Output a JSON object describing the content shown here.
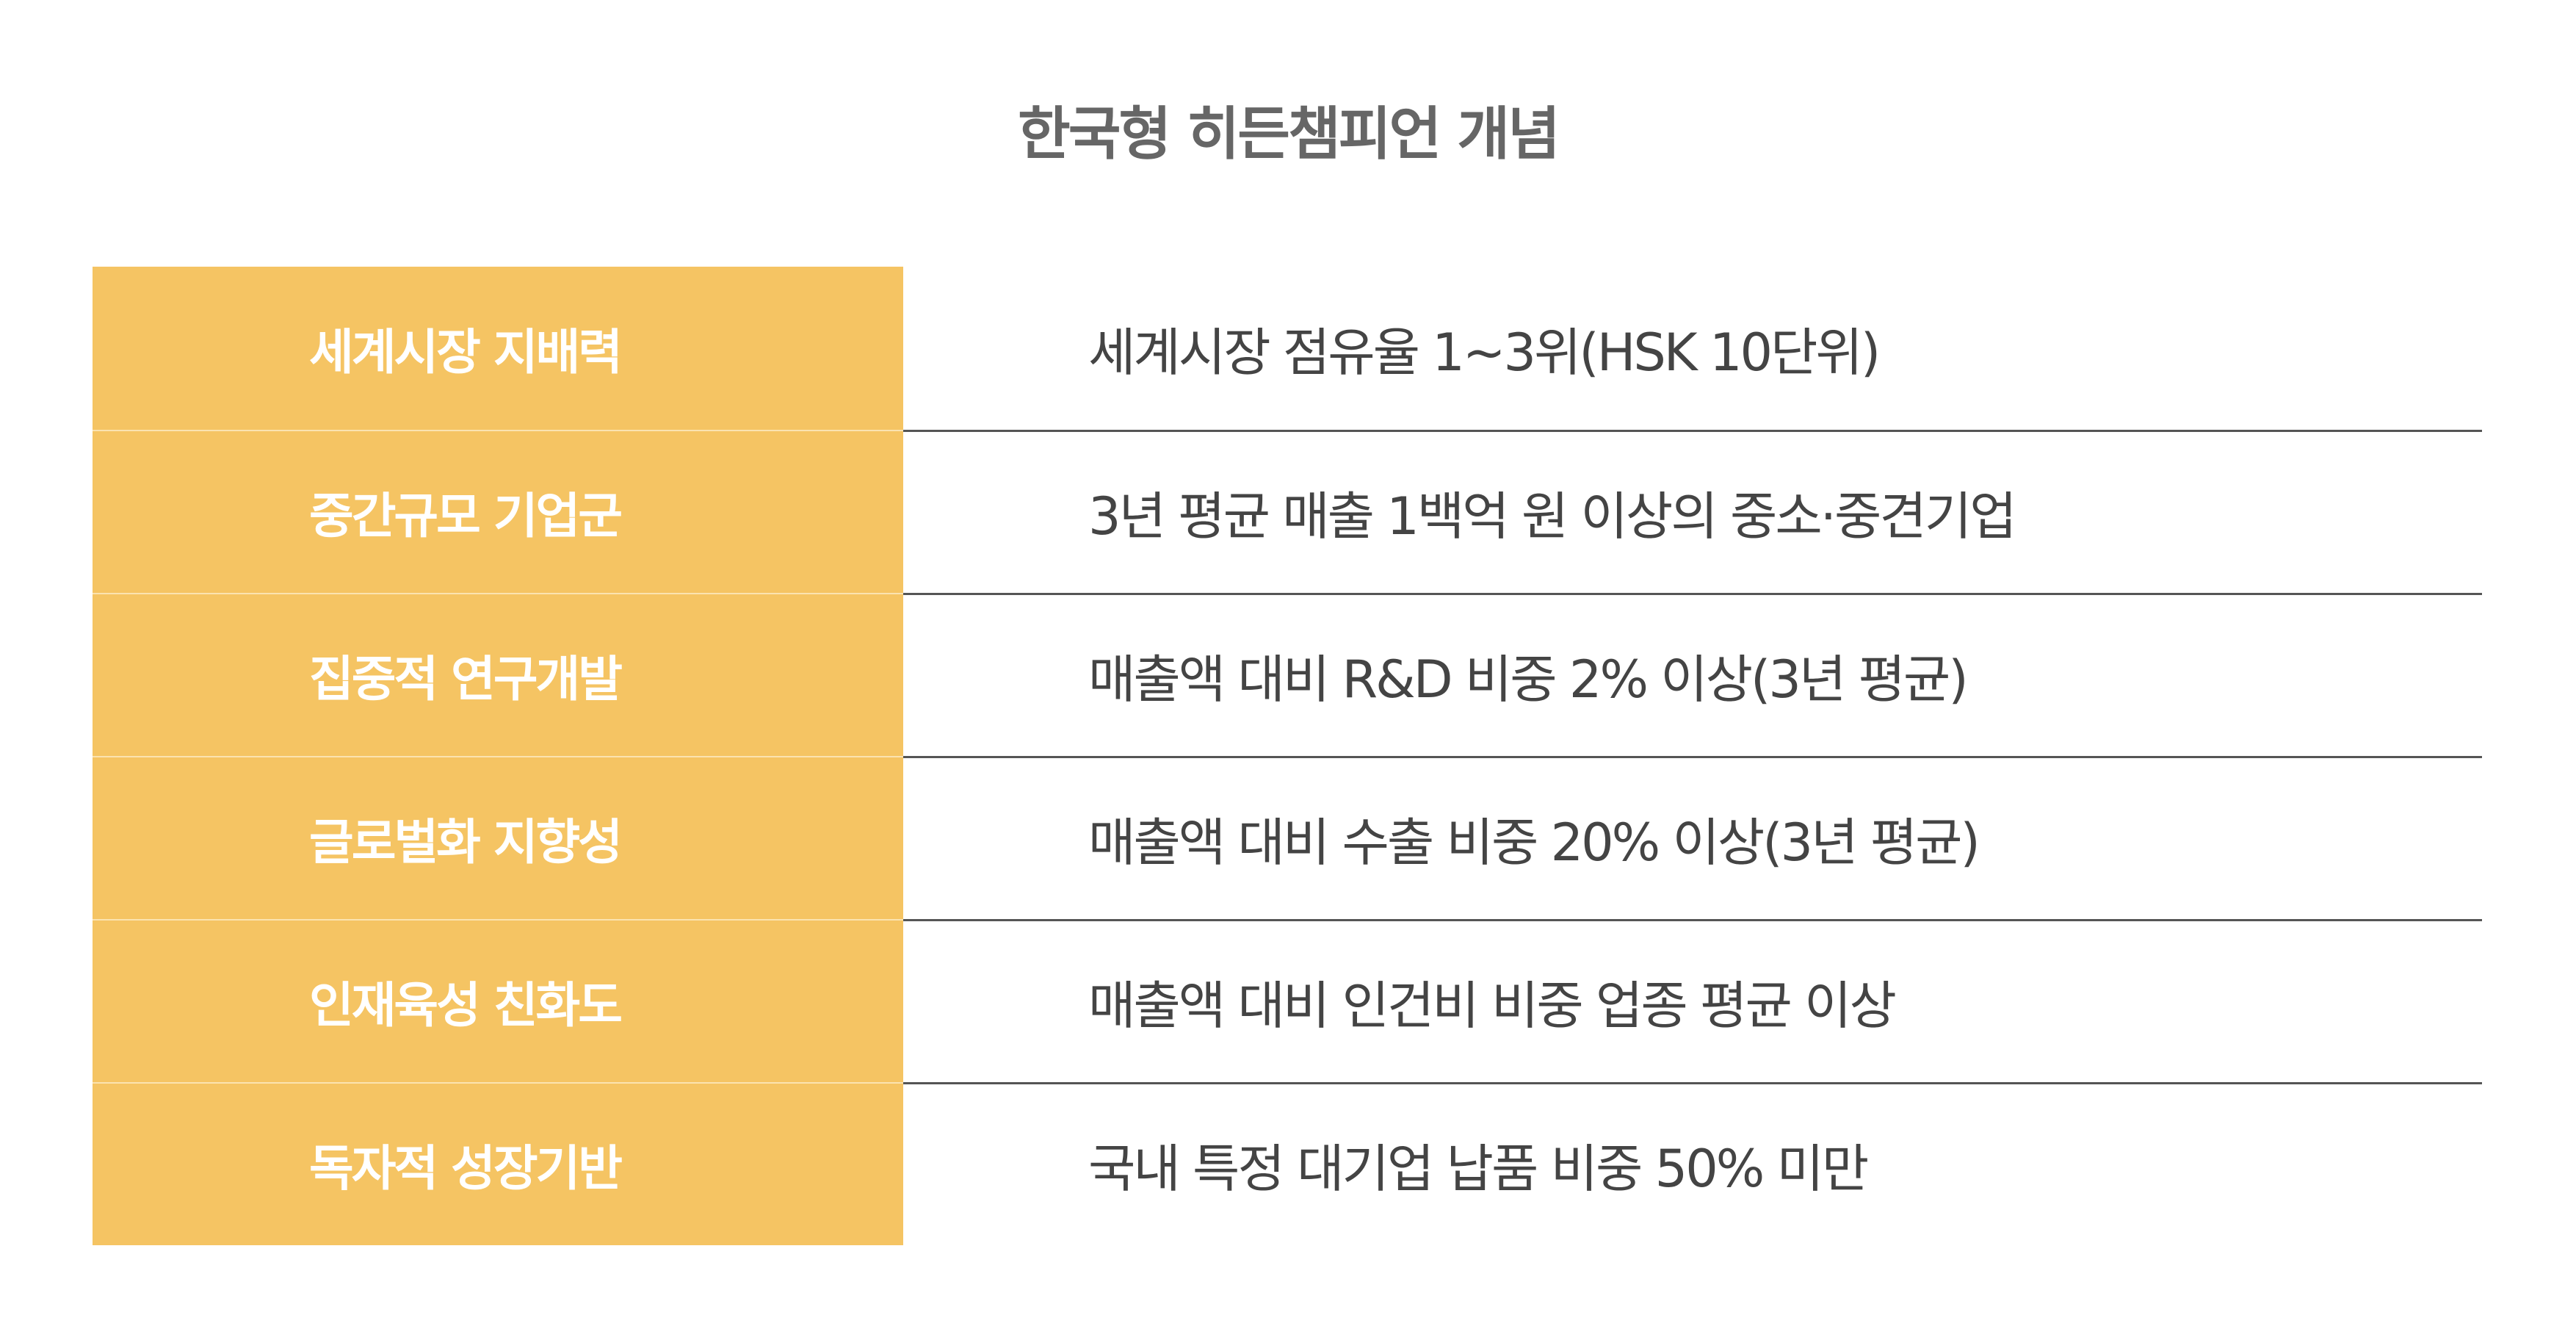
{
  "title": "한국형 히든챔피언 개념",
  "colors": {
    "label_bg": "#F5C463",
    "label_text": "#FFFFFF",
    "value_text": "#444444",
    "title_text": "#666666"
  },
  "rows": [
    {
      "label": "세계시장 지배력",
      "value": "세계시장 점유율 1~3위(HSK 10단위)"
    },
    {
      "label": "중간규모 기업군",
      "value": "3년 평균  매출 1백억 원 이상의 중소·중견기업"
    },
    {
      "label": "집중적 연구개발",
      "value": "매출액 대비 R&D 비중 2% 이상(3년 평균)"
    },
    {
      "label": "글로벌화 지향성",
      "value": "매출액 대비 수출 비중 20% 이상(3년 평균)"
    },
    {
      "label": "인재육성 친화도",
      "value": "매출액 대비 인건비 비중 업종 평균 이상"
    },
    {
      "label": "독자적 성장기반",
      "value": "국내 특정 대기업 납품 비중 50% 미만"
    }
  ]
}
